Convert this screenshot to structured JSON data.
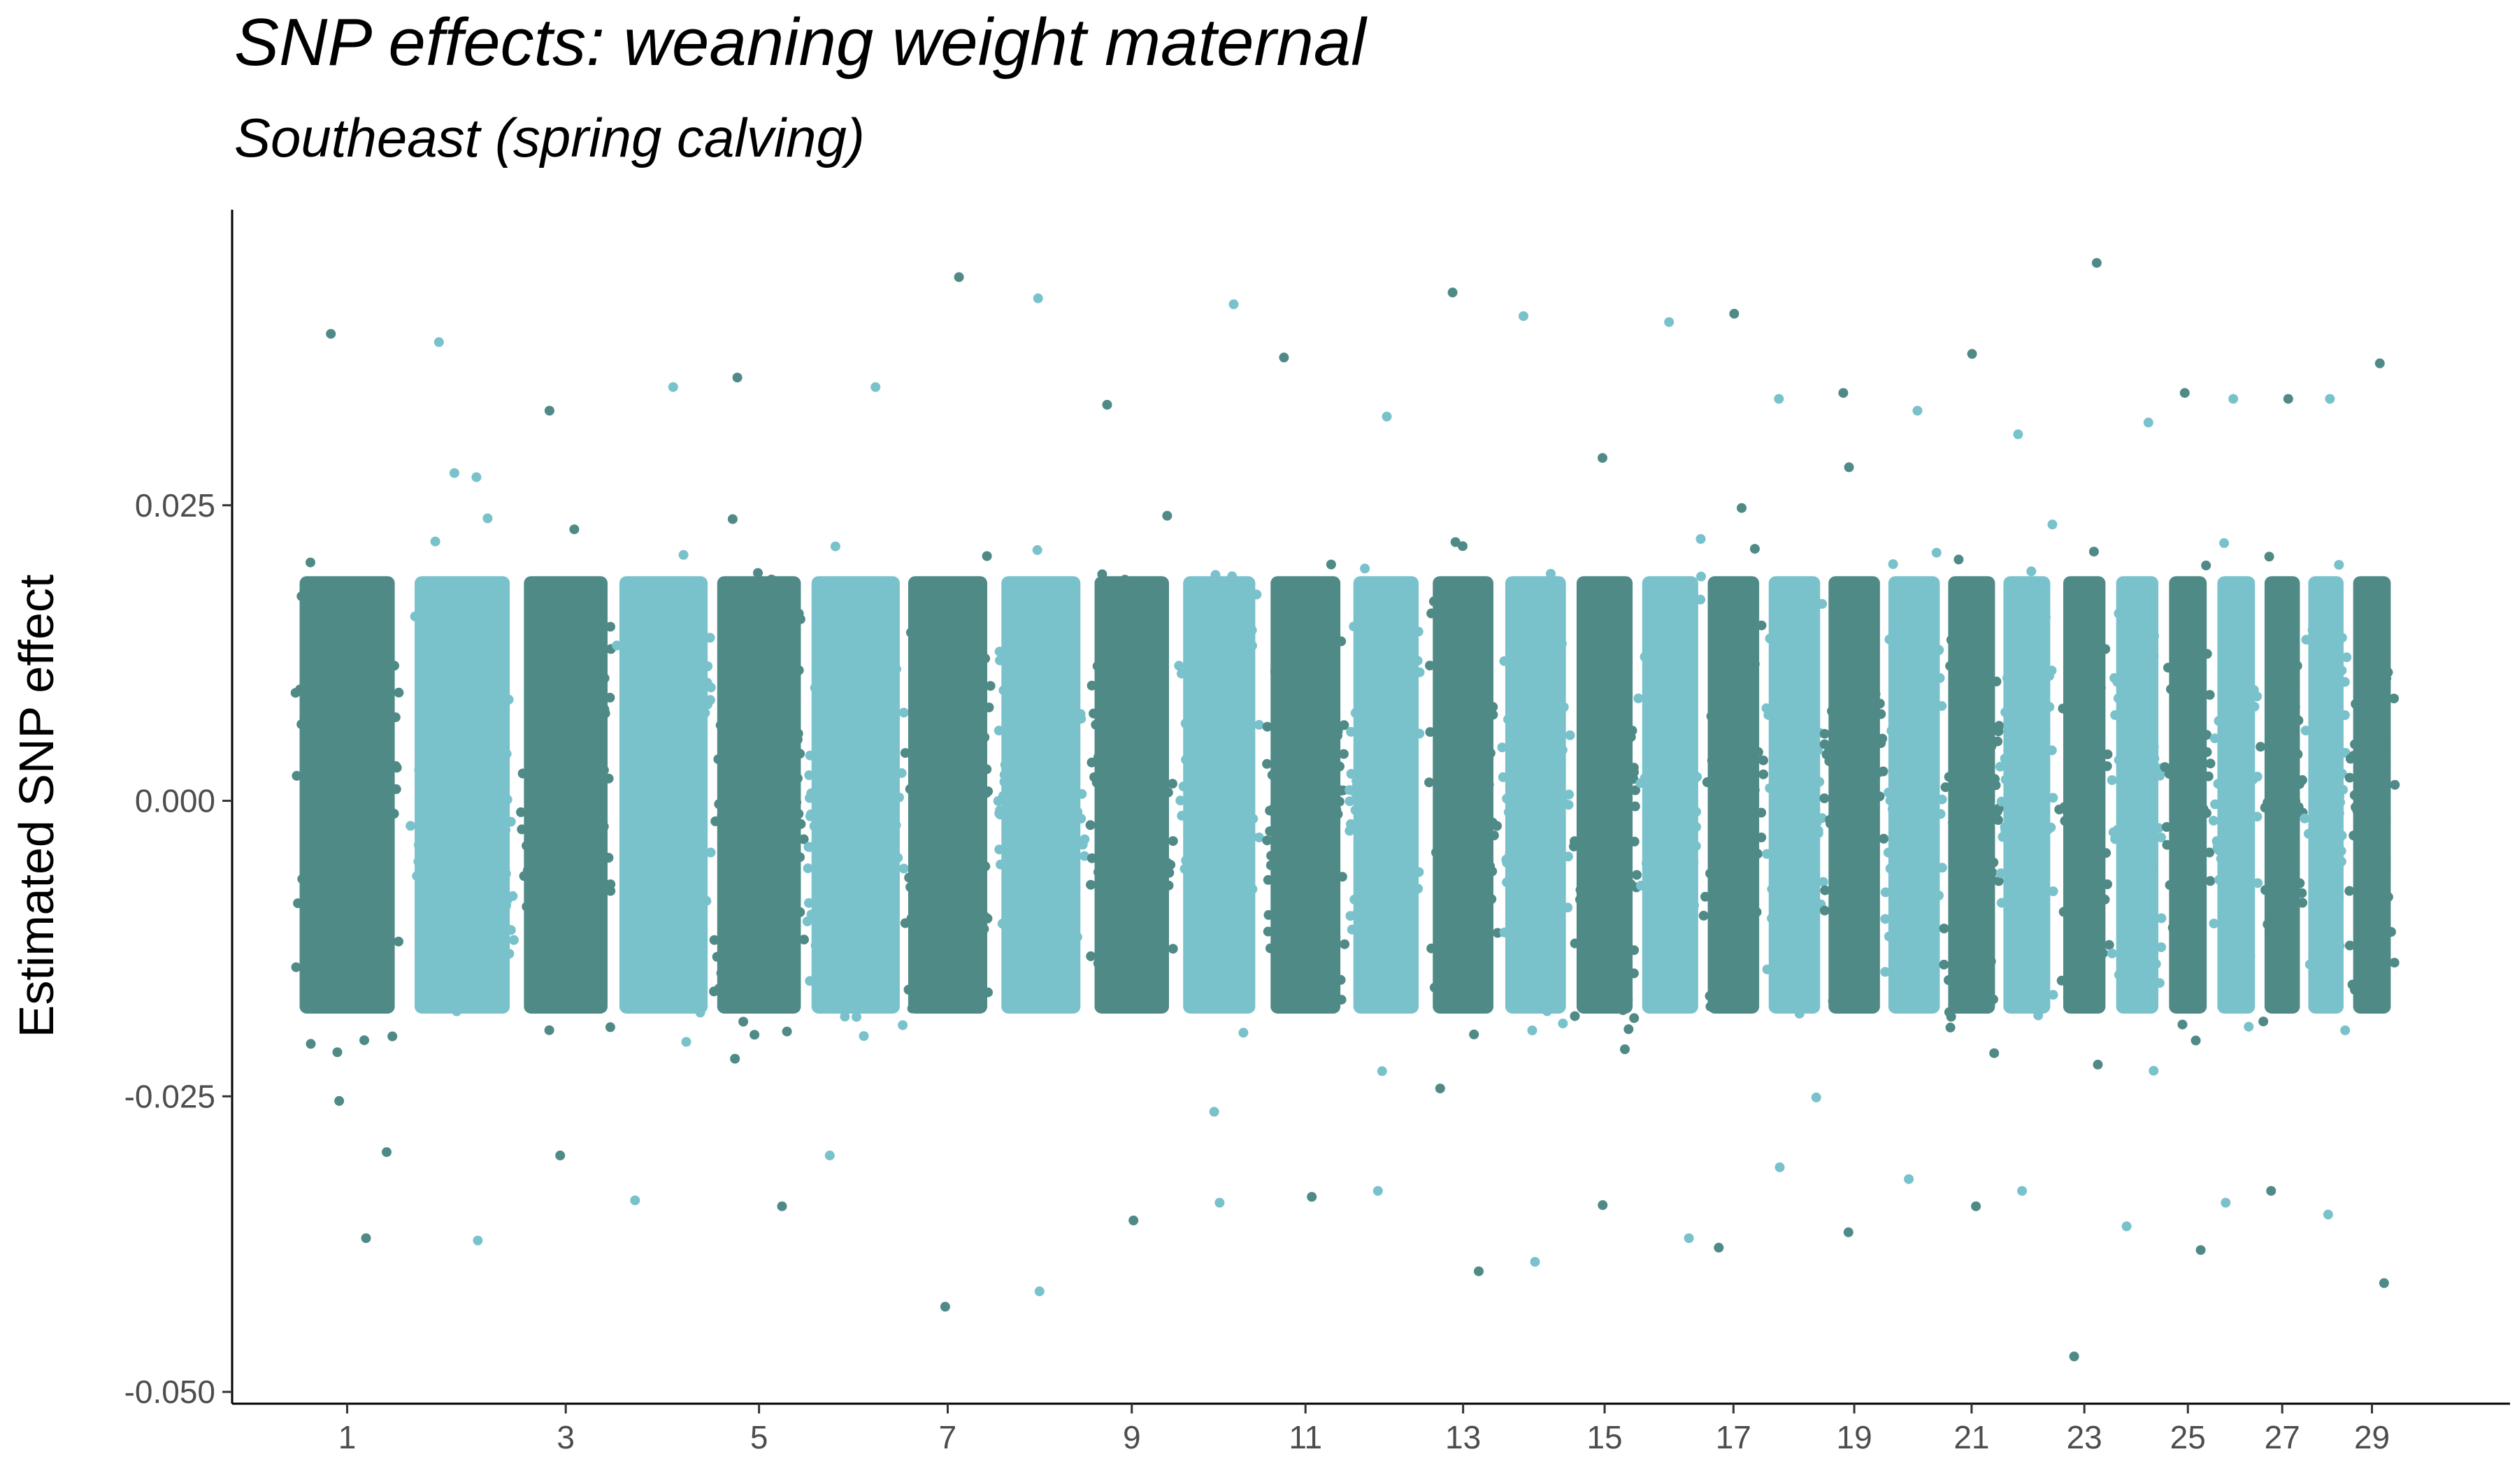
{
  "chart_data": {
    "type": "scatter",
    "title": "SNP effects: weaning weight maternal",
    "subtitle": "Southeast (spring calving)",
    "xlabel": "",
    "ylabel": "Estimated SNP effect",
    "ylim": [
      -0.051,
      0.05
    ],
    "y_ticks": [
      -0.05,
      -0.025,
      0.0,
      0.025
    ],
    "y_tick_labels": [
      "-0.050",
      "-0.025",
      "0.000",
      "0.025"
    ],
    "x_tick_labels": [
      "1",
      "3",
      "5",
      "7",
      "9",
      "11",
      "13",
      "15",
      "17",
      "19",
      "21",
      "23",
      "25",
      "27",
      "29"
    ],
    "grid": false,
    "legend": "none",
    "colors": {
      "odd_chromosome": "#4f8a87",
      "even_chromosome": "#79c2cc"
    },
    "chromosomes": [
      {
        "chr": 1,
        "center": 1.0,
        "half_width": 0.45,
        "min": -0.037,
        "max": 0.0395
      },
      {
        "chr": 2,
        "center": 2.0,
        "half_width": 0.45,
        "min": -0.0372,
        "max": 0.0388
      },
      {
        "chr": 3,
        "center": 2.9,
        "half_width": 0.4,
        "min": -0.03,
        "max": 0.033
      },
      {
        "chr": 4,
        "center": 3.75,
        "half_width": 0.42,
        "min": -0.0338,
        "max": 0.035
      },
      {
        "chr": 5,
        "center": 4.58,
        "half_width": 0.4,
        "min": -0.0343,
        "max": 0.0358
      },
      {
        "chr": 6,
        "center": 5.42,
        "half_width": 0.42,
        "min": -0.03,
        "max": 0.035
      },
      {
        "chr": 7,
        "center": 6.22,
        "half_width": 0.38,
        "min": -0.0428,
        "max": 0.0443
      },
      {
        "chr": 8,
        "center": 7.03,
        "half_width": 0.38,
        "min": -0.0415,
        "max": 0.0425
      },
      {
        "chr": 9,
        "center": 7.82,
        "half_width": 0.36,
        "min": -0.0355,
        "max": 0.0335
      },
      {
        "chr": 10,
        "center": 8.58,
        "half_width": 0.35,
        "min": -0.034,
        "max": 0.042
      },
      {
        "chr": 11,
        "center": 9.33,
        "half_width": 0.34,
        "min": -0.0335,
        "max": 0.0375
      },
      {
        "chr": 12,
        "center": 10.03,
        "half_width": 0.32,
        "min": -0.033,
        "max": 0.0325
      },
      {
        "chr": 13,
        "center": 10.7,
        "half_width": 0.3,
        "min": -0.0398,
        "max": 0.043
      },
      {
        "chr": 14,
        "center": 11.33,
        "half_width": 0.3,
        "min": -0.039,
        "max": 0.041
      },
      {
        "chr": 15,
        "center": 11.93,
        "half_width": 0.28,
        "min": -0.0342,
        "max": 0.029
      },
      {
        "chr": 16,
        "center": 12.5,
        "half_width": 0.28,
        "min": -0.037,
        "max": 0.0405
      },
      {
        "chr": 17,
        "center": 13.05,
        "half_width": 0.26,
        "min": -0.0378,
        "max": 0.0412
      },
      {
        "chr": 18,
        "center": 13.58,
        "half_width": 0.26,
        "min": -0.031,
        "max": 0.034
      },
      {
        "chr": 19,
        "center": 14.1,
        "half_width": 0.26,
        "min": -0.0365,
        "max": 0.0345
      },
      {
        "chr": 20,
        "center": 14.62,
        "half_width": 0.26,
        "min": -0.032,
        "max": 0.033
      },
      {
        "chr": 21,
        "center": 15.12,
        "half_width": 0.24,
        "min": -0.0343,
        "max": 0.0378
      },
      {
        "chr": 22,
        "center": 15.6,
        "half_width": 0.24,
        "min": -0.033,
        "max": 0.031
      },
      {
        "chr": 23,
        "center": 16.1,
        "half_width": 0.22,
        "min": -0.047,
        "max": 0.0455
      },
      {
        "chr": 24,
        "center": 16.56,
        "half_width": 0.22,
        "min": -0.036,
        "max": 0.032
      },
      {
        "chr": 25,
        "center": 17.0,
        "half_width": 0.2,
        "min": -0.038,
        "max": 0.0345
      },
      {
        "chr": 26,
        "center": 17.42,
        "half_width": 0.2,
        "min": -0.034,
        "max": 0.034
      },
      {
        "chr": 27,
        "center": 17.82,
        "half_width": 0.19,
        "min": -0.033,
        "max": 0.034
      },
      {
        "chr": 28,
        "center": 18.2,
        "half_width": 0.19,
        "min": -0.035,
        "max": 0.034
      },
      {
        "chr": 29,
        "center": 18.6,
        "half_width": 0.2,
        "min": -0.0408,
        "max": 0.037
      }
    ],
    "x_axis": {
      "min": 0.0,
      "max": 19.8
    },
    "core_band": [
      -0.018,
      0.019
    ]
  }
}
